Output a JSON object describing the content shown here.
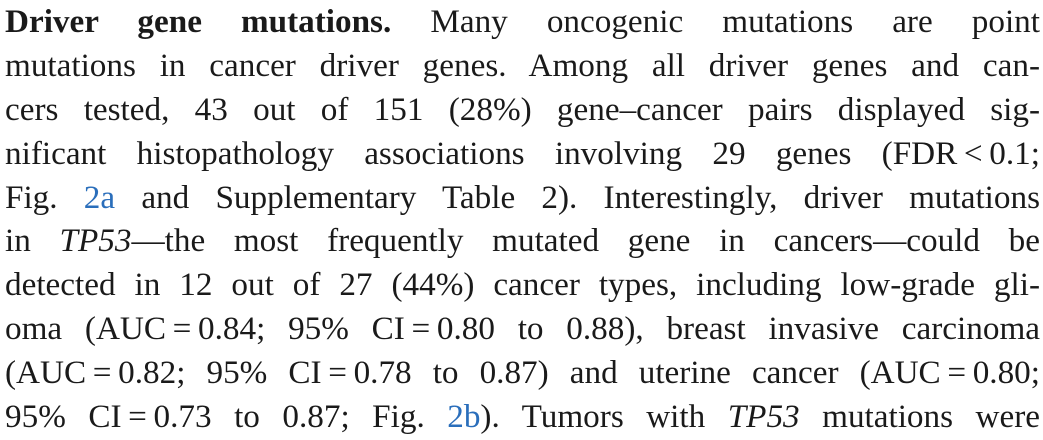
{
  "paragraph": {
    "lines": [
      {
        "heading": "Driver gene mutations.",
        "text": " Many oncogenic mutations are point"
      },
      {
        "text": "mutations in cancer driver genes. Among all driver genes and can-"
      },
      {
        "text": "cers tested, 43 out of 151 (28%) gene–cancer pairs displayed sig-"
      },
      {
        "text": "nificant histopathology associations involving 29 genes (FDR < 0.1;"
      },
      {
        "a": "Fig. ",
        "link": "2a",
        "b": " and Supplementary Table 2). Interestingly, driver mutations"
      },
      {
        "a": "in ",
        "gene": "TP53",
        "b": "—the most frequently mutated gene in cancers—could be"
      },
      {
        "text": "detected in 12 out of 27 (44%) cancer types, including low-grade gli-"
      },
      {
        "text": "oma (AUC = 0.84; 95% CI = 0.80 to 0.88), breast invasive carcinoma"
      },
      {
        "text": "(AUC = 0.82; 95% CI = 0.78 to 0.87) and uterine cancer (AUC = 0.80;"
      },
      {
        "a": "95% CI = 0.73 to 0.87; Fig. ",
        "link": "2b",
        "b": "). Tumors with ",
        "gene": "TP53",
        "c": " mutations were"
      }
    ]
  }
}
